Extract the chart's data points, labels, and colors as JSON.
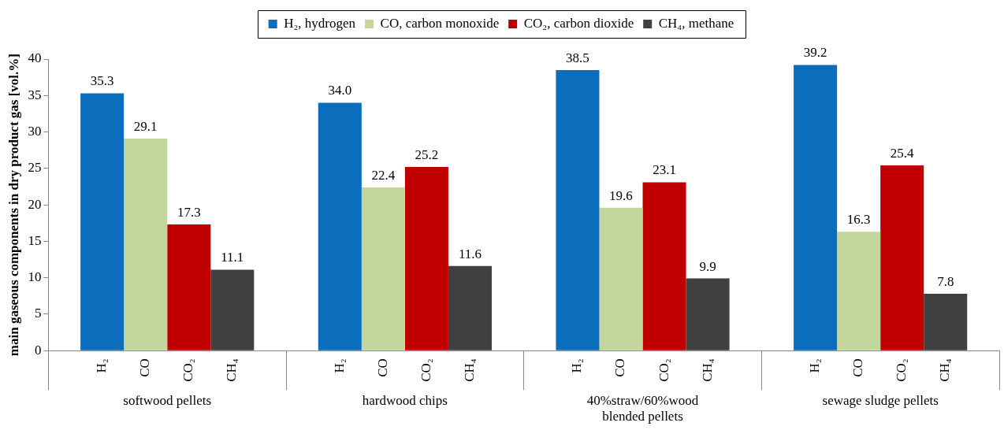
{
  "chart_data": {
    "type": "bar",
    "ylabel": "main gaseous components in dry product gas [vol.%]",
    "categories": [
      "softwood pellets",
      "hardwood chips",
      "40%straw/60%wood blended pellets",
      "sewage sludge pellets"
    ],
    "series": [
      {
        "name": "H₂, hydrogen",
        "color": "#0a6ebd",
        "values": [
          35.3,
          34.0,
          38.5,
          39.2
        ],
        "value_labels": [
          "35.3",
          "34.0",
          "38.5",
          "39.2"
        ]
      },
      {
        "name": "CO, carbon monoxide",
        "color": "#c3d69b",
        "values": [
          29.1,
          22.4,
          19.6,
          16.3
        ],
        "value_labels": [
          "29.1",
          "22.4",
          "19.6",
          "16.3"
        ]
      },
      {
        "name": "CO₂, carbon dioxide",
        "color": "#c00000",
        "values": [
          17.3,
          25.2,
          23.1,
          25.4
        ],
        "value_labels": [
          "17.3",
          "25.2",
          "23.1",
          "25.4"
        ]
      },
      {
        "name": "CH₄, methane",
        "color": "#404040",
        "values": [
          11.1,
          11.6,
          9.9,
          7.8
        ],
        "value_labels": [
          "11.1",
          "11.6",
          "9.9",
          "7.8"
        ]
      }
    ],
    "annotations": [
      "H₂",
      "CO",
      "CO₂",
      "CH₄",
      "H₂",
      "CO",
      "CO₂",
      "CH₄",
      "H₂",
      "CO",
      "CO₂",
      "CH₄",
      "H₂",
      "CO",
      "CO₂",
      "CH₄"
    ],
    "ylim": [
      0,
      40
    ],
    "yticks": [
      0,
      5,
      10,
      15,
      20,
      25,
      30,
      35,
      40
    ],
    "grid": false,
    "legend": "top"
  }
}
